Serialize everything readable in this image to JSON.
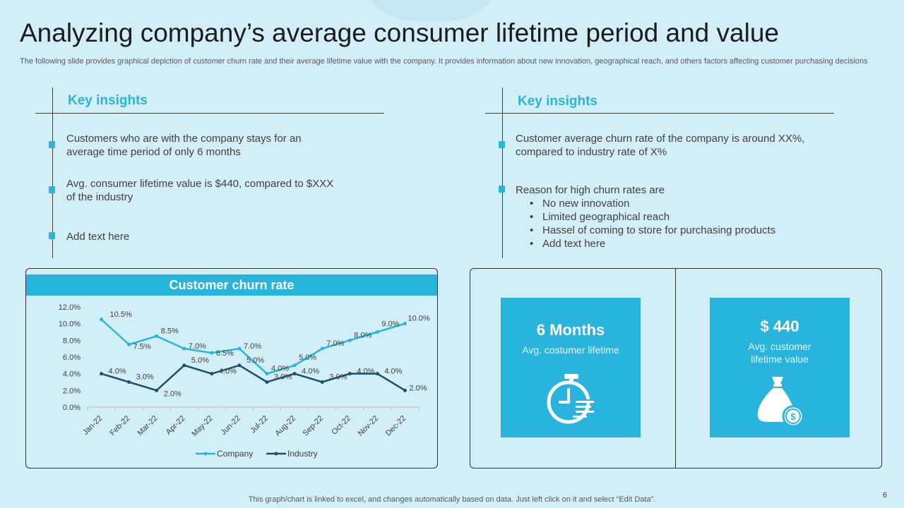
{
  "title": "Analyzing company’s average consumer lifetime period and value",
  "subtitle": "The following slide provides graphical depiction of customer churn rate and their average lifetime value with the company. It provides information about new innovation, geographical reach, and others factors affecting customer purchasing decisions",
  "left_insights": {
    "heading": "Key insights",
    "items": [
      "Customers who are with the company stays for an average time period of only 6 months",
      "Avg. consumer lifetime value is $440, compared to $XXX of the industry",
      "Add text here"
    ]
  },
  "right_insights": {
    "heading": "Key insights",
    "item1": "Customer average churn rate of the company is around XX%, compared to industry rate of X%",
    "item2": "Reason for high churn rates are",
    "sub_items": [
      "No new innovation",
      "Limited geographical reach",
      "Hassel of coming to store for purchasing products",
      "Add text here"
    ]
  },
  "stats": {
    "months": {
      "value": "6 Months",
      "label": "Avg. costumer lifetime",
      "icon": "stopwatch-icon"
    },
    "value": {
      "value": "$ 440",
      "label": "Avg. customer lifetime value",
      "icon": "money-bag-icon"
    }
  },
  "chart_data": {
    "type": "line",
    "title": "Customer churn rate",
    "categories": [
      "Jan-22",
      "Feb-22",
      "Mar-22",
      "Apr-22",
      "May-22",
      "Jun-22",
      "Jul-22",
      "Aug-22",
      "Sep-22",
      "Oct-22",
      "Nov-22",
      "Dec-22"
    ],
    "series": [
      {
        "name": "Company",
        "color": "#29b4de",
        "values": [
          10.5,
          7.5,
          8.5,
          7.0,
          6.5,
          7.0,
          4.0,
          5.0,
          7.0,
          8.0,
          9.0,
          10.0
        ]
      },
      {
        "name": "Industry",
        "color": "#1a4f6e",
        "values": [
          4.0,
          3.0,
          2.0,
          5.0,
          4.0,
          5.0,
          3.0,
          4.0,
          3.0,
          4.0,
          4.0,
          2.0
        ]
      }
    ],
    "ylim": [
      0,
      12
    ],
    "yticks": [
      0,
      2,
      4,
      6,
      8,
      10,
      12
    ],
    "legend": "bottom",
    "grid": false
  },
  "footer": "This graph/chart is linked to excel, and changes automatically based on data. Just left click on it and select “Edit Data”.",
  "page_number": "6"
}
